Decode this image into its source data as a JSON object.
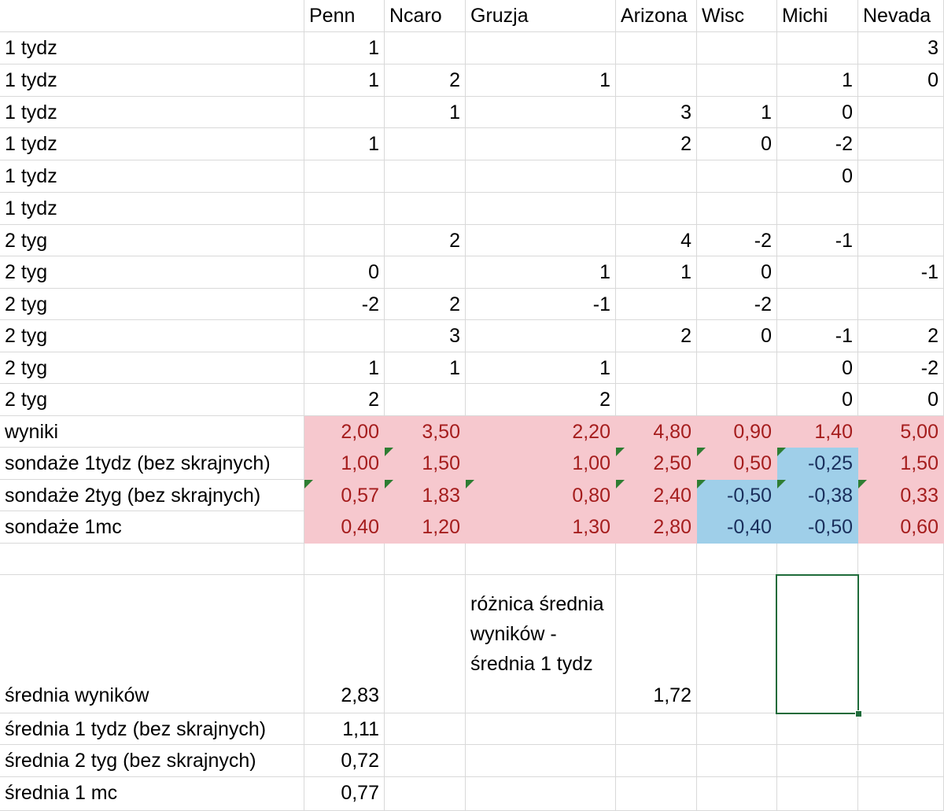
{
  "sheet": {
    "headers": [
      "",
      "Penn",
      "Ncaro",
      "Gruzja",
      "Arizona",
      "Wisc",
      "Michi",
      "Nevada"
    ],
    "rows": [
      [
        "1 tydz",
        "1",
        "",
        "",
        "",
        "",
        "",
        "3"
      ],
      [
        "1 tydz",
        "1",
        "2",
        "1",
        "",
        "",
        "1",
        "0"
      ],
      [
        "1 tydz",
        "",
        "1",
        "",
        "3",
        "1",
        "0",
        ""
      ],
      [
        "1 tydz",
        "1",
        "",
        "",
        "2",
        "0",
        "-2",
        ""
      ],
      [
        "1 tydz",
        "",
        "",
        "",
        "",
        "",
        "0",
        ""
      ],
      [
        "1 tydz",
        "",
        "",
        "",
        "",
        "",
        "",
        ""
      ],
      [
        "2 tyg",
        "",
        "2",
        "",
        "4",
        "-2",
        "-1",
        ""
      ],
      [
        "2 tyg",
        "0",
        "",
        "1",
        "1",
        "0",
        "",
        "-1"
      ],
      [
        "2 tyg",
        "-2",
        "2",
        "-1",
        "",
        "-2",
        "",
        ""
      ],
      [
        "2 tyg",
        "",
        "3",
        "",
        "2",
        "0",
        "-1",
        "2"
      ],
      [
        "2 tyg",
        "1",
        "1",
        "1",
        "",
        "",
        "0",
        "-2"
      ],
      [
        "2 tyg",
        "2",
        "",
        "2",
        "",
        "",
        "0",
        "0"
      ],
      [
        "wyniki",
        "2,00",
        "3,50",
        "2,20",
        "4,80",
        "0,90",
        "1,40",
        "5,00"
      ],
      [
        "sondaże 1tydz (bez skrajnych)",
        "1,00",
        "1,50",
        "1,00",
        "2,50",
        "0,50",
        "-0,25",
        "1,50"
      ],
      [
        "sondaże 2tyg (bez skrajnych)",
        "0,57",
        "1,83",
        "0,80",
        "2,40",
        "-0,50",
        "-0,38",
        "0,33"
      ],
      [
        "sondaże 1mc",
        "0,40",
        "1,20",
        "1,30",
        "2,80",
        "-0,40",
        "-0,50",
        "0,60"
      ],
      [
        "",
        "",
        "",
        "",
        "",
        "",
        "",
        ""
      ],
      [
        "średnia wyników",
        "2,83",
        "",
        "różnica średnia wyników - średnia 1 tydz",
        "1,72",
        "",
        "",
        ""
      ],
      [
        "średnia 1 tydz (bez skrajnych)",
        "1,11",
        "",
        "",
        "",
        "",
        "",
        ""
      ],
      [
        "średnia 2 tyg (bez skrajnych)",
        "0,72",
        "",
        "",
        "",
        "",
        "",
        ""
      ],
      [
        "średnia 1 mc",
        "0,77",
        "",
        "",
        "",
        "",
        "",
        ""
      ]
    ],
    "highlight_colors": {
      "pink_fill": "#f6c8ce",
      "pink_text": "#a51d1d",
      "blue_fill": "#9fcfe9",
      "blue_text": "#1a2f5c",
      "indicator": "#2e7d32",
      "selection": "#1e6b3a"
    },
    "blue_cells": [
      [
        13,
        6
      ],
      [
        14,
        5
      ],
      [
        14,
        6
      ],
      [
        15,
        5
      ],
      [
        15,
        6
      ]
    ],
    "indicator_cells": [
      [
        13,
        2
      ],
      [
        13,
        5
      ],
      [
        13,
        6
      ],
      [
        14,
        1
      ],
      [
        14,
        2
      ],
      [
        14,
        3
      ],
      [
        14,
        4
      ],
      [
        14,
        5
      ],
      [
        14,
        6
      ],
      [
        14,
        7
      ],
      [
        13,
        4
      ]
    ],
    "selected_cell": [
      17,
      6
    ]
  }
}
